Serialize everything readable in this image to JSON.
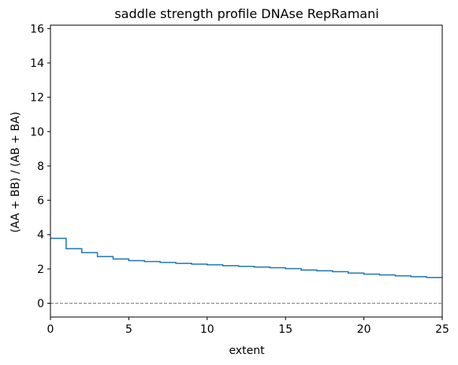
{
  "chart_data": {
    "type": "line",
    "step": "post",
    "title": "saddle strength profile DNAse RepRamani",
    "xlabel": "extent",
    "ylabel": "(AA + BB) / (AB + BA)",
    "xlim": [
      0,
      25
    ],
    "ylim": [
      -0.8,
      16.2
    ],
    "xticks": [
      0,
      5,
      10,
      15,
      20,
      25
    ],
    "yticks": [
      0,
      2,
      4,
      6,
      8,
      10,
      12,
      14,
      16
    ],
    "grid": false,
    "legend": "none",
    "series": [
      {
        "color": "#1f77b4",
        "x": [
          0,
          1,
          2,
          3,
          4,
          5,
          6,
          7,
          8,
          9,
          10,
          11,
          12,
          13,
          14,
          15,
          16,
          17,
          18,
          19,
          20,
          21,
          22,
          23,
          24,
          25
        ],
        "y": [
          3.78,
          3.18,
          2.95,
          2.72,
          2.58,
          2.48,
          2.43,
          2.38,
          2.33,
          2.28,
          2.24,
          2.19,
          2.15,
          2.11,
          2.07,
          2.02,
          1.94,
          1.89,
          1.84,
          1.76,
          1.7,
          1.65,
          1.6,
          1.55,
          1.5,
          1.5
        ]
      }
    ],
    "reference_line": {
      "y": 0,
      "color": "#808080",
      "style": "dashed"
    }
  }
}
